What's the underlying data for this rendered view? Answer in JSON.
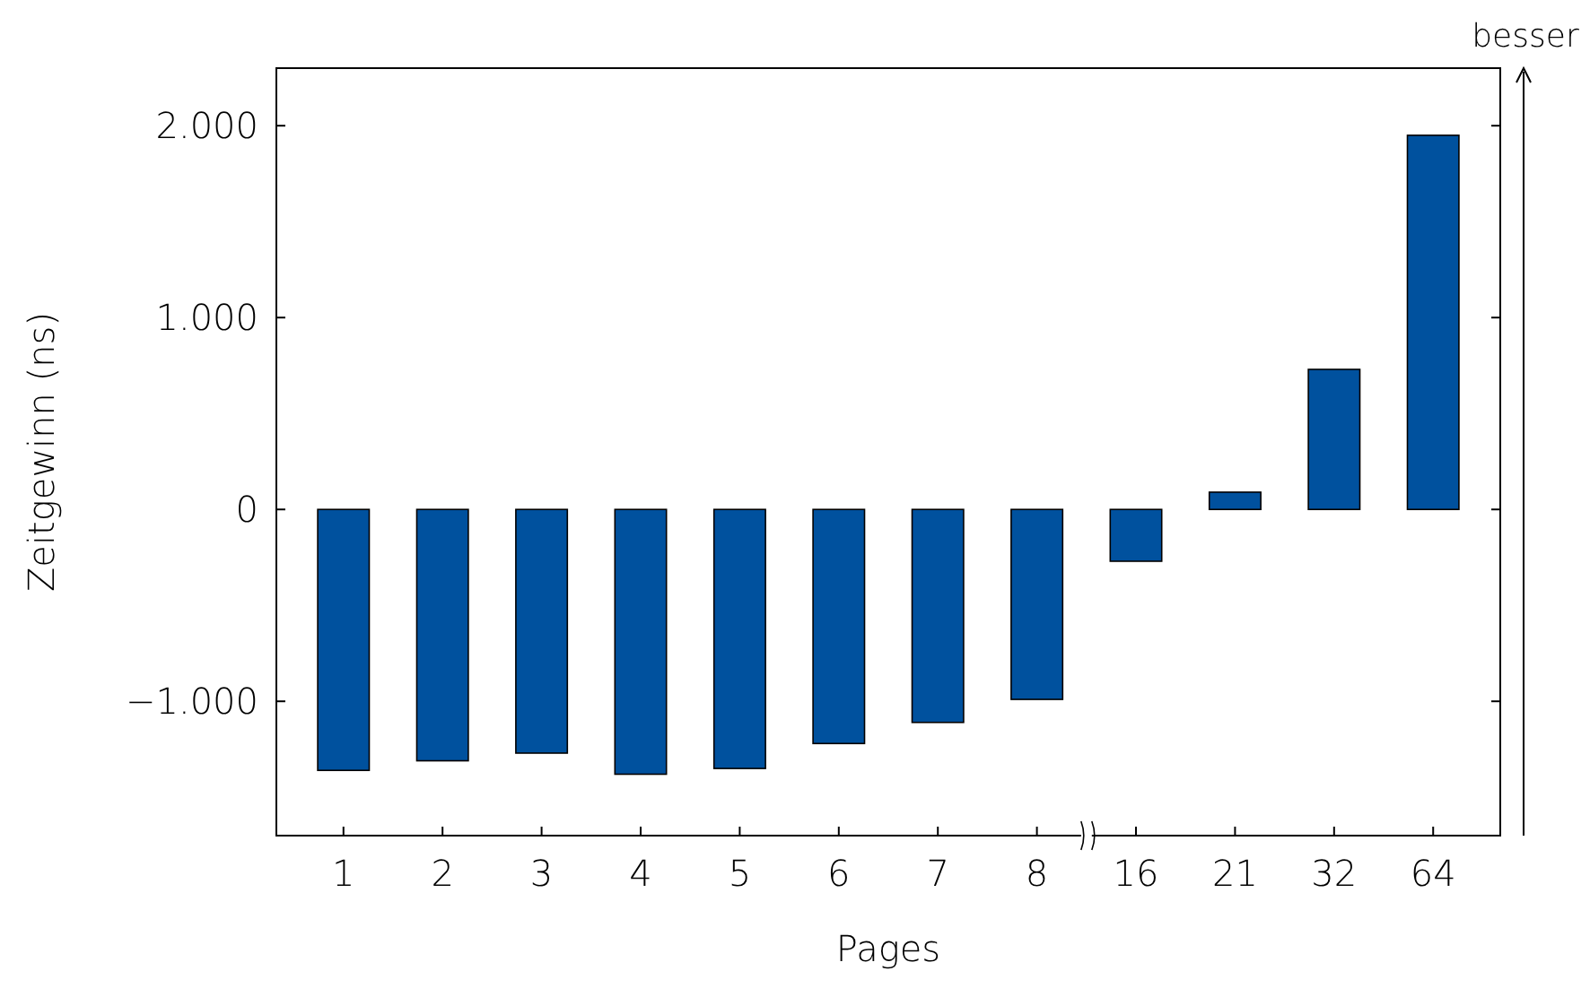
{
  "chart_data": {
    "type": "bar",
    "xlabel": "Pages",
    "ylabel": "Zeitgewinn (ns)",
    "categories": [
      "1",
      "2",
      "3",
      "4",
      "5",
      "6",
      "7",
      "8",
      "16",
      "21",
      "32",
      "64"
    ],
    "values": [
      -1360,
      -1310,
      -1270,
      -1380,
      -1350,
      -1220,
      -1110,
      -990,
      -270,
      90,
      730,
      1950
    ],
    "color": "#00519e",
    "ylim": [
      -1700,
      2300
    ],
    "yticks": [
      {
        "value": -1000,
        "label": "−1.000"
      },
      0,
      {
        "value": 1000,
        "label": "1.000"
      },
      {
        "value": 2000,
        "label": "2.000"
      }
    ],
    "grid": false,
    "annotations": [
      "besser"
    ]
  }
}
